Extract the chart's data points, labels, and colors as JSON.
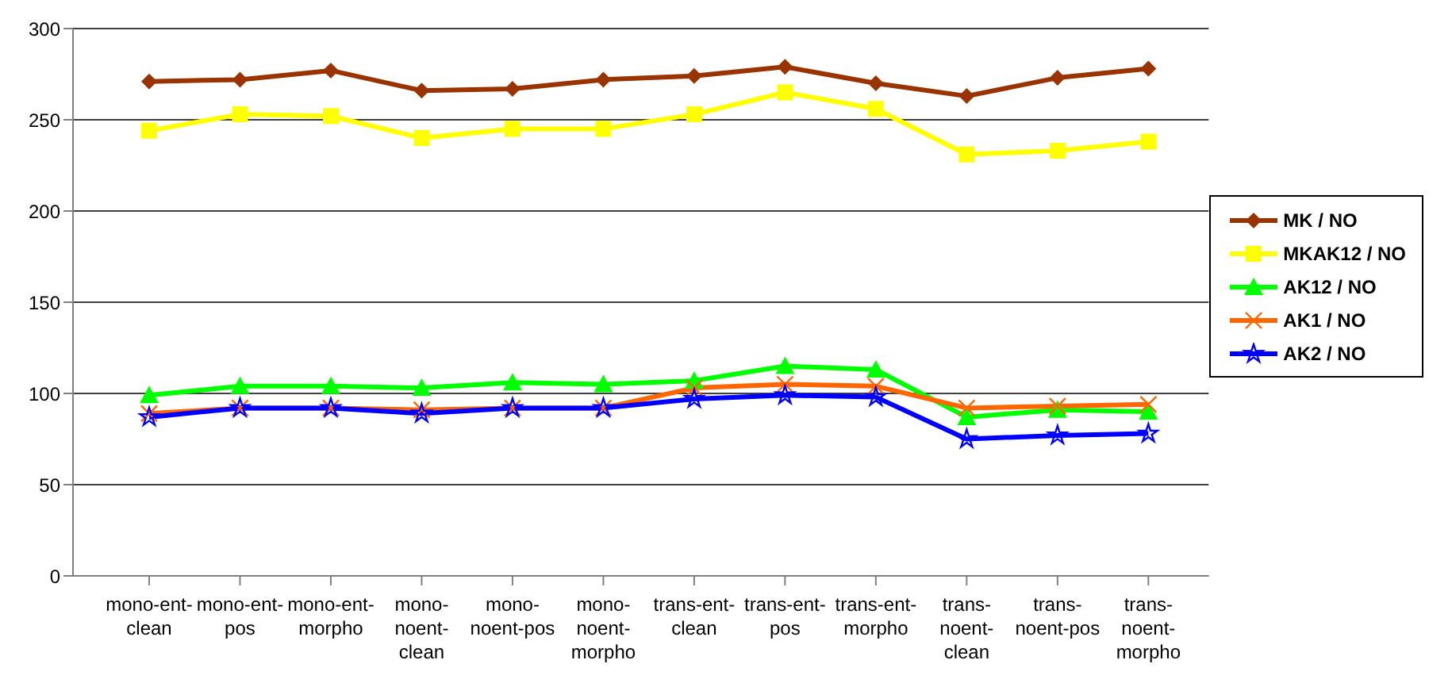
{
  "chart_data": {
    "type": "line",
    "categories": [
      "mono-ent-clean",
      "mono-ent-pos",
      "mono-ent-morpho",
      "mono-noent-clean",
      "mono-noent-pos",
      "mono-noent-morpho",
      "trans-ent-clean",
      "trans-ent-pos",
      "trans-ent-morpho",
      "trans-noent-clean",
      "trans-noent-pos",
      "trans-noent-morpho"
    ],
    "series": [
      {
        "name": "MK / NO",
        "color": "#993300",
        "marker": "diamond",
        "values": [
          271,
          272,
          277,
          266,
          267,
          272,
          274,
          279,
          270,
          263,
          273,
          278
        ]
      },
      {
        "name": "MKAK12 / NO",
        "color": "#ffff00",
        "marker": "square",
        "values": [
          244,
          253,
          252,
          240,
          245,
          245,
          253,
          265,
          256,
          231,
          233,
          238
        ]
      },
      {
        "name": "AK12 / NO",
        "color": "#00ff00",
        "marker": "triangle",
        "values": [
          99,
          104,
          104,
          103,
          106,
          105,
          107,
          115,
          113,
          87,
          91,
          90
        ]
      },
      {
        "name": "AK1 / NO",
        "color": "#ff6600",
        "marker": "cross",
        "values": [
          89,
          92,
          92,
          91,
          92,
          92,
          103,
          105,
          104,
          92,
          93,
          94
        ]
      },
      {
        "name": "AK2 / NO",
        "color": "#0000ff",
        "marker": "star",
        "values": [
          87,
          92,
          92,
          89,
          92,
          92,
          97,
          99,
          98,
          75,
          77,
          78
        ]
      }
    ],
    "ylim": [
      0,
      300
    ],
    "yticks": [
      0,
      50,
      100,
      150,
      200,
      250,
      300
    ],
    "grid": "y",
    "legend": "right"
  }
}
